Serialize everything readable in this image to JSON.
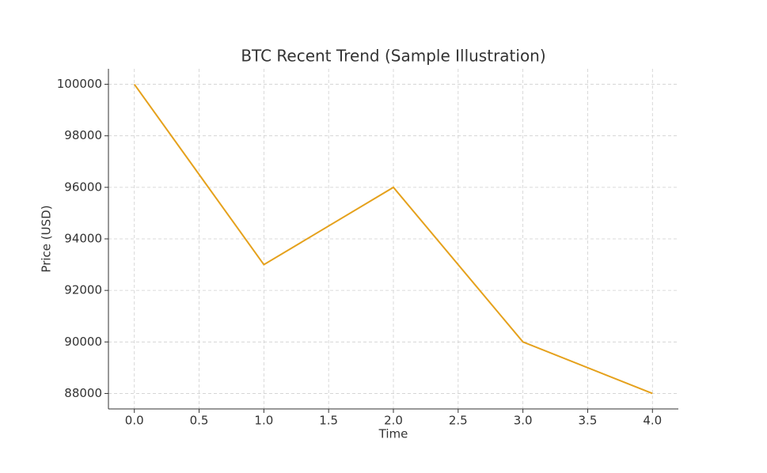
{
  "chart_data": {
    "type": "line",
    "title": "BTC Recent Trend (Sample Illustration)",
    "x_label": "Time",
    "y_label": "Price (USD)",
    "x": [
      0,
      1,
      2,
      3,
      4
    ],
    "series": [
      {
        "name": "BTC",
        "color": "#e5a11c",
        "values": [
          100000,
          93000,
          96000,
          90000,
          88000
        ]
      }
    ],
    "xlim": [
      -0.2,
      4.2
    ],
    "xticks": [
      {
        "value": 0,
        "label": "0.0"
      },
      0.5,
      {
        "value": 1,
        "label": "1.0"
      },
      1.5,
      {
        "value": 2,
        "label": "2.0"
      },
      2.5,
      {
        "value": 3,
        "label": "3.0"
      },
      3.5,
      {
        "value": 4,
        "label": "4.0"
      }
    ],
    "ylim": [
      87400,
      100600
    ],
    "yticks": [
      88000,
      90000,
      92000,
      94000,
      96000,
      98000,
      100000
    ],
    "grid": true
  }
}
